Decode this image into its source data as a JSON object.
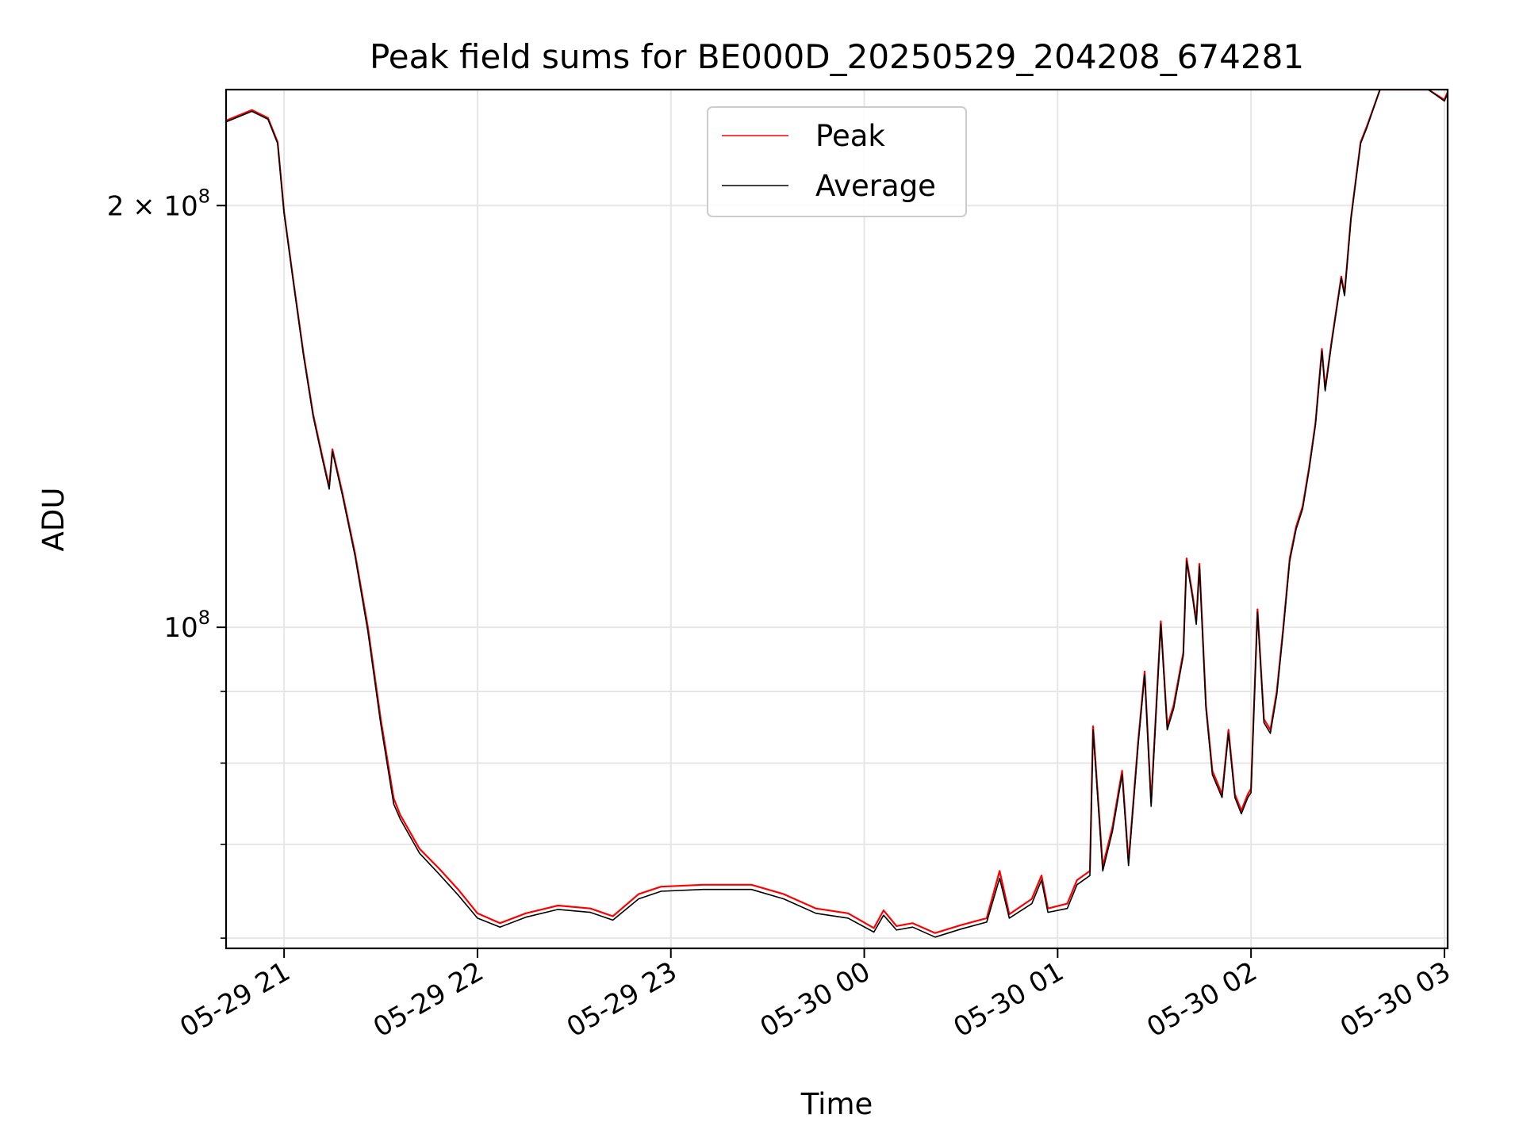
{
  "chart_data": {
    "type": "line",
    "title": "Peak field sums for BE000D_20250529_204208_674281",
    "xlabel": "Time",
    "ylabel": "ADU",
    "yscale": "log",
    "ylim": [
      59000000,
      242000000
    ],
    "xlim": [
      "05-29 20:42",
      "05-30 03:01"
    ],
    "x_ticks": [
      "05-29 21",
      "05-29 22",
      "05-29 23",
      "05-30 00",
      "05-30 01",
      "05-30 02",
      "05-30 03"
    ],
    "y_ticks": [
      {
        "value": 100000000,
        "label": "10",
        "exp": "8"
      },
      {
        "value": 200000000,
        "label": "2 × 10",
        "exp": "8"
      }
    ],
    "y_minor_ticks": [
      60000000,
      70000000,
      80000000,
      90000000
    ],
    "grid": true,
    "legend_position": "top-center",
    "colors": {
      "peak": "#ff0000",
      "average": "#000000",
      "grid": "#e6e6e6"
    },
    "series": [
      {
        "name": "Peak",
        "color": "#ff0000",
        "points": [
          [
            "05-29 20:42",
            230000000
          ],
          [
            "05-29 20:50",
            234000000
          ],
          [
            "05-29 20:55",
            231000000
          ],
          [
            "05-29 20:58",
            222000000
          ],
          [
            "05-29 21:00",
            198000000
          ],
          [
            "05-29 21:03",
            176000000
          ],
          [
            "05-29 21:06",
            157000000
          ],
          [
            "05-29 21:09",
            142000000
          ],
          [
            "05-29 21:12",
            132000000
          ],
          [
            "05-29 21:14",
            126000000
          ],
          [
            "05-29 21:15",
            134000000
          ],
          [
            "05-29 21:18",
            125000000
          ],
          [
            "05-29 21:22",
            113000000
          ],
          [
            "05-29 21:26",
            100000000
          ],
          [
            "05-29 21:30",
            86000000
          ],
          [
            "05-29 21:34",
            75500000
          ],
          [
            "05-29 21:36",
            73500000
          ],
          [
            "05-29 21:42",
            69500000
          ],
          [
            "05-29 21:48",
            67300000
          ],
          [
            "05-29 21:54",
            65000000
          ],
          [
            "05-29 22:00",
            62500000
          ],
          [
            "05-29 22:07",
            61500000
          ],
          [
            "05-29 22:15",
            62500000
          ],
          [
            "05-29 22:25",
            63300000
          ],
          [
            "05-29 22:35",
            63000000
          ],
          [
            "05-29 22:42",
            62200000
          ],
          [
            "05-29 22:50",
            64500000
          ],
          [
            "05-29 22:57",
            65300000
          ],
          [
            "05-29 23:10",
            65500000
          ],
          [
            "05-29 23:25",
            65500000
          ],
          [
            "05-29 23:35",
            64500000
          ],
          [
            "05-29 23:45",
            63000000
          ],
          [
            "05-29 23:55",
            62500000
          ],
          [
            "05-30 00:03",
            61000000
          ],
          [
            "05-30 00:06",
            62800000
          ],
          [
            "05-30 00:10",
            61200000
          ],
          [
            "05-30 00:15",
            61500000
          ],
          [
            "05-30 00:22",
            60500000
          ],
          [
            "05-30 00:30",
            61300000
          ],
          [
            "05-30 00:38",
            62000000
          ],
          [
            "05-30 00:42",
            67000000
          ],
          [
            "05-30 00:45",
            62400000
          ],
          [
            "05-30 00:52",
            64000000
          ],
          [
            "05-30 00:55",
            66500000
          ],
          [
            "05-30 00:57",
            63000000
          ],
          [
            "05-30 01:03",
            63500000
          ],
          [
            "05-30 01:06",
            66000000
          ],
          [
            "05-30 01:10",
            67000000
          ],
          [
            "05-30 01:11",
            85000000
          ],
          [
            "05-30 01:14",
            67500000
          ],
          [
            "05-30 01:17",
            72000000
          ],
          [
            "05-30 01:20",
            79000000
          ],
          [
            "05-30 01:22",
            68000000
          ],
          [
            "05-30 01:25",
            83000000
          ],
          [
            "05-30 01:27",
            93000000
          ],
          [
            "05-30 01:29",
            75000000
          ],
          [
            "05-30 01:32",
            101000000
          ],
          [
            "05-30 01:34",
            85000000
          ],
          [
            "05-30 01:36",
            88000000
          ],
          [
            "05-30 01:39",
            96000000
          ],
          [
            "05-30 01:40",
            112000000
          ],
          [
            "05-30 01:42",
            105000000
          ],
          [
            "05-30 01:43",
            101000000
          ],
          [
            "05-30 01:44",
            111000000
          ],
          [
            "05-30 01:46",
            88000000
          ],
          [
            "05-30 01:48",
            79000000
          ],
          [
            "05-30 01:51",
            76000000
          ],
          [
            "05-30 01:53",
            84500000
          ],
          [
            "05-30 01:55",
            76000000
          ],
          [
            "05-30 01:57",
            74000000
          ],
          [
            "05-30 01:59",
            76000000
          ],
          [
            "05-30 02:00",
            76700000
          ],
          [
            "05-30 02:02",
            103000000
          ],
          [
            "05-30 02:04",
            86000000
          ],
          [
            "05-30 02:06",
            84500000
          ],
          [
            "05-30 02:08",
            90000000
          ],
          [
            "05-30 02:10",
            100000000
          ],
          [
            "05-30 02:12",
            112000000
          ],
          [
            "05-30 02:14",
            118000000
          ],
          [
            "05-30 02:16",
            122000000
          ],
          [
            "05-30 02:18",
            130000000
          ],
          [
            "05-30 02:20",
            140000000
          ],
          [
            "05-30 02:22",
            158000000
          ],
          [
            "05-30 02:23",
            148000000
          ],
          [
            "05-30 02:25",
            160000000
          ],
          [
            "05-30 02:28",
            178000000
          ],
          [
            "05-30 02:29",
            173000000
          ],
          [
            "05-30 02:31",
            196000000
          ],
          [
            "05-30 02:34",
            222000000
          ],
          [
            "05-30 02:36",
            228000000
          ],
          [
            "05-30 02:40",
            242000000
          ],
          [
            "05-30 02:55",
            242000000
          ],
          [
            "05-30 03:00",
            238000000
          ],
          [
            "05-30 03:01",
            241000000
          ]
        ]
      },
      {
        "name": "Average",
        "color": "#000000",
        "points": [
          [
            "05-29 20:42",
            229500000
          ],
          [
            "05-29 20:50",
            233500000
          ],
          [
            "05-29 20:55",
            230500000
          ],
          [
            "05-29 20:58",
            221500000
          ],
          [
            "05-29 21:00",
            197500000
          ],
          [
            "05-29 21:03",
            175500000
          ],
          [
            "05-29 21:06",
            156500000
          ],
          [
            "05-29 21:09",
            141500000
          ],
          [
            "05-29 21:12",
            131500000
          ],
          [
            "05-29 21:14",
            125500000
          ],
          [
            "05-29 21:15",
            133500000
          ],
          [
            "05-29 21:18",
            124500000
          ],
          [
            "05-29 21:22",
            112500000
          ],
          [
            "05-29 21:26",
            99300000
          ],
          [
            "05-29 21:30",
            85300000
          ],
          [
            "05-29 21:34",
            74800000
          ],
          [
            "05-29 21:36",
            73000000
          ],
          [
            "05-29 21:42",
            69000000
          ],
          [
            "05-29 21:48",
            66700000
          ],
          [
            "05-29 21:54",
            64400000
          ],
          [
            "05-29 22:00",
            62000000
          ],
          [
            "05-29 22:07",
            61100000
          ],
          [
            "05-29 22:15",
            62100000
          ],
          [
            "05-29 22:25",
            62900000
          ],
          [
            "05-29 22:35",
            62600000
          ],
          [
            "05-29 22:42",
            61800000
          ],
          [
            "05-29 22:50",
            64000000
          ],
          [
            "05-29 22:57",
            64800000
          ],
          [
            "05-29 23:10",
            65000000
          ],
          [
            "05-29 23:25",
            65000000
          ],
          [
            "05-29 23:35",
            64000000
          ],
          [
            "05-29 23:45",
            62500000
          ],
          [
            "05-29 23:55",
            62000000
          ],
          [
            "05-30 00:03",
            60600000
          ],
          [
            "05-30 00:06",
            62300000
          ],
          [
            "05-30 00:10",
            60800000
          ],
          [
            "05-30 00:15",
            61100000
          ],
          [
            "05-30 00:22",
            60100000
          ],
          [
            "05-30 00:30",
            60900000
          ],
          [
            "05-30 00:38",
            61600000
          ],
          [
            "05-30 00:42",
            66200000
          ],
          [
            "05-30 00:45",
            62000000
          ],
          [
            "05-30 00:52",
            63500000
          ],
          [
            "05-30 00:55",
            66000000
          ],
          [
            "05-30 00:57",
            62600000
          ],
          [
            "05-30 01:03",
            63000000
          ],
          [
            "05-30 01:06",
            65500000
          ],
          [
            "05-30 01:10",
            66500000
          ],
          [
            "05-30 01:11",
            84500000
          ],
          [
            "05-30 01:14",
            67000000
          ],
          [
            "05-30 01:17",
            71500000
          ],
          [
            "05-30 01:20",
            78500000
          ],
          [
            "05-30 01:22",
            67600000
          ],
          [
            "05-30 01:25",
            82500000
          ],
          [
            "05-30 01:27",
            92500000
          ],
          [
            "05-30 01:29",
            74500000
          ],
          [
            "05-30 01:32",
            100500000
          ],
          [
            "05-30 01:34",
            84500000
          ],
          [
            "05-30 01:36",
            87500000
          ],
          [
            "05-30 01:39",
            95500000
          ],
          [
            "05-30 01:40",
            111500000
          ],
          [
            "05-30 01:42",
            104500000
          ],
          [
            "05-30 01:43",
            100500000
          ],
          [
            "05-30 01:44",
            110500000
          ],
          [
            "05-30 01:46",
            87500000
          ],
          [
            "05-30 01:48",
            78500000
          ],
          [
            "05-30 01:51",
            75600000
          ],
          [
            "05-30 01:53",
            84000000
          ],
          [
            "05-30 01:55",
            75600000
          ],
          [
            "05-30 01:57",
            73600000
          ],
          [
            "05-30 01:59",
            75600000
          ],
          [
            "05-30 02:00",
            76200000
          ],
          [
            "05-30 02:02",
            102500000
          ],
          [
            "05-30 02:04",
            85500000
          ],
          [
            "05-30 02:06",
            84000000
          ],
          [
            "05-30 02:08",
            89500000
          ],
          [
            "05-30 02:10",
            99500000
          ],
          [
            "05-30 02:12",
            111500000
          ],
          [
            "05-30 02:14",
            117500000
          ],
          [
            "05-30 02:16",
            121500000
          ],
          [
            "05-30 02:18",
            129500000
          ],
          [
            "05-30 02:20",
            139500000
          ],
          [
            "05-30 02:22",
            157500000
          ],
          [
            "05-30 02:23",
            147500000
          ],
          [
            "05-30 02:25",
            159500000
          ],
          [
            "05-30 02:28",
            177500000
          ],
          [
            "05-30 02:29",
            172500000
          ],
          [
            "05-30 02:31",
            195500000
          ],
          [
            "05-30 02:34",
            221500000
          ],
          [
            "05-30 02:36",
            227500000
          ],
          [
            "05-30 02:40",
            242000000
          ],
          [
            "05-30 02:55",
            242000000
          ],
          [
            "05-30 03:00",
            237500000
          ],
          [
            "05-30 03:01",
            240500000
          ]
        ]
      }
    ]
  }
}
